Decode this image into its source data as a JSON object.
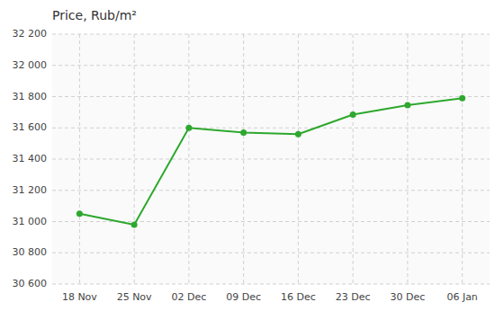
{
  "chart_data": {
    "type": "line",
    "title": "Price, Rub/m²",
    "categories": [
      "18 Nov",
      "25 Nov",
      "02 Dec",
      "09 Dec",
      "16 Dec",
      "23 Dec",
      "30 Dec",
      "06 Jan"
    ],
    "values": [
      31050,
      30980,
      31600,
      31570,
      31560,
      31685,
      31745,
      31790
    ],
    "color": "#2ea82e",
    "marker": "circle",
    "ylim": [
      30600,
      32200
    ],
    "yticks": [
      {
        "value": 30600,
        "label": "30 600"
      },
      {
        "value": 30800,
        "label": "30 800"
      },
      {
        "value": 31000,
        "label": "31 000"
      },
      {
        "value": 31200,
        "label": "31 200"
      },
      {
        "value": 31400,
        "label": "31 400"
      },
      {
        "value": 31600,
        "label": "31 600"
      },
      {
        "value": 31800,
        "label": "31 800"
      },
      {
        "value": 32000,
        "label": "32 000"
      },
      {
        "value": 32200,
        "label": "32 200"
      }
    ],
    "grid": true
  }
}
